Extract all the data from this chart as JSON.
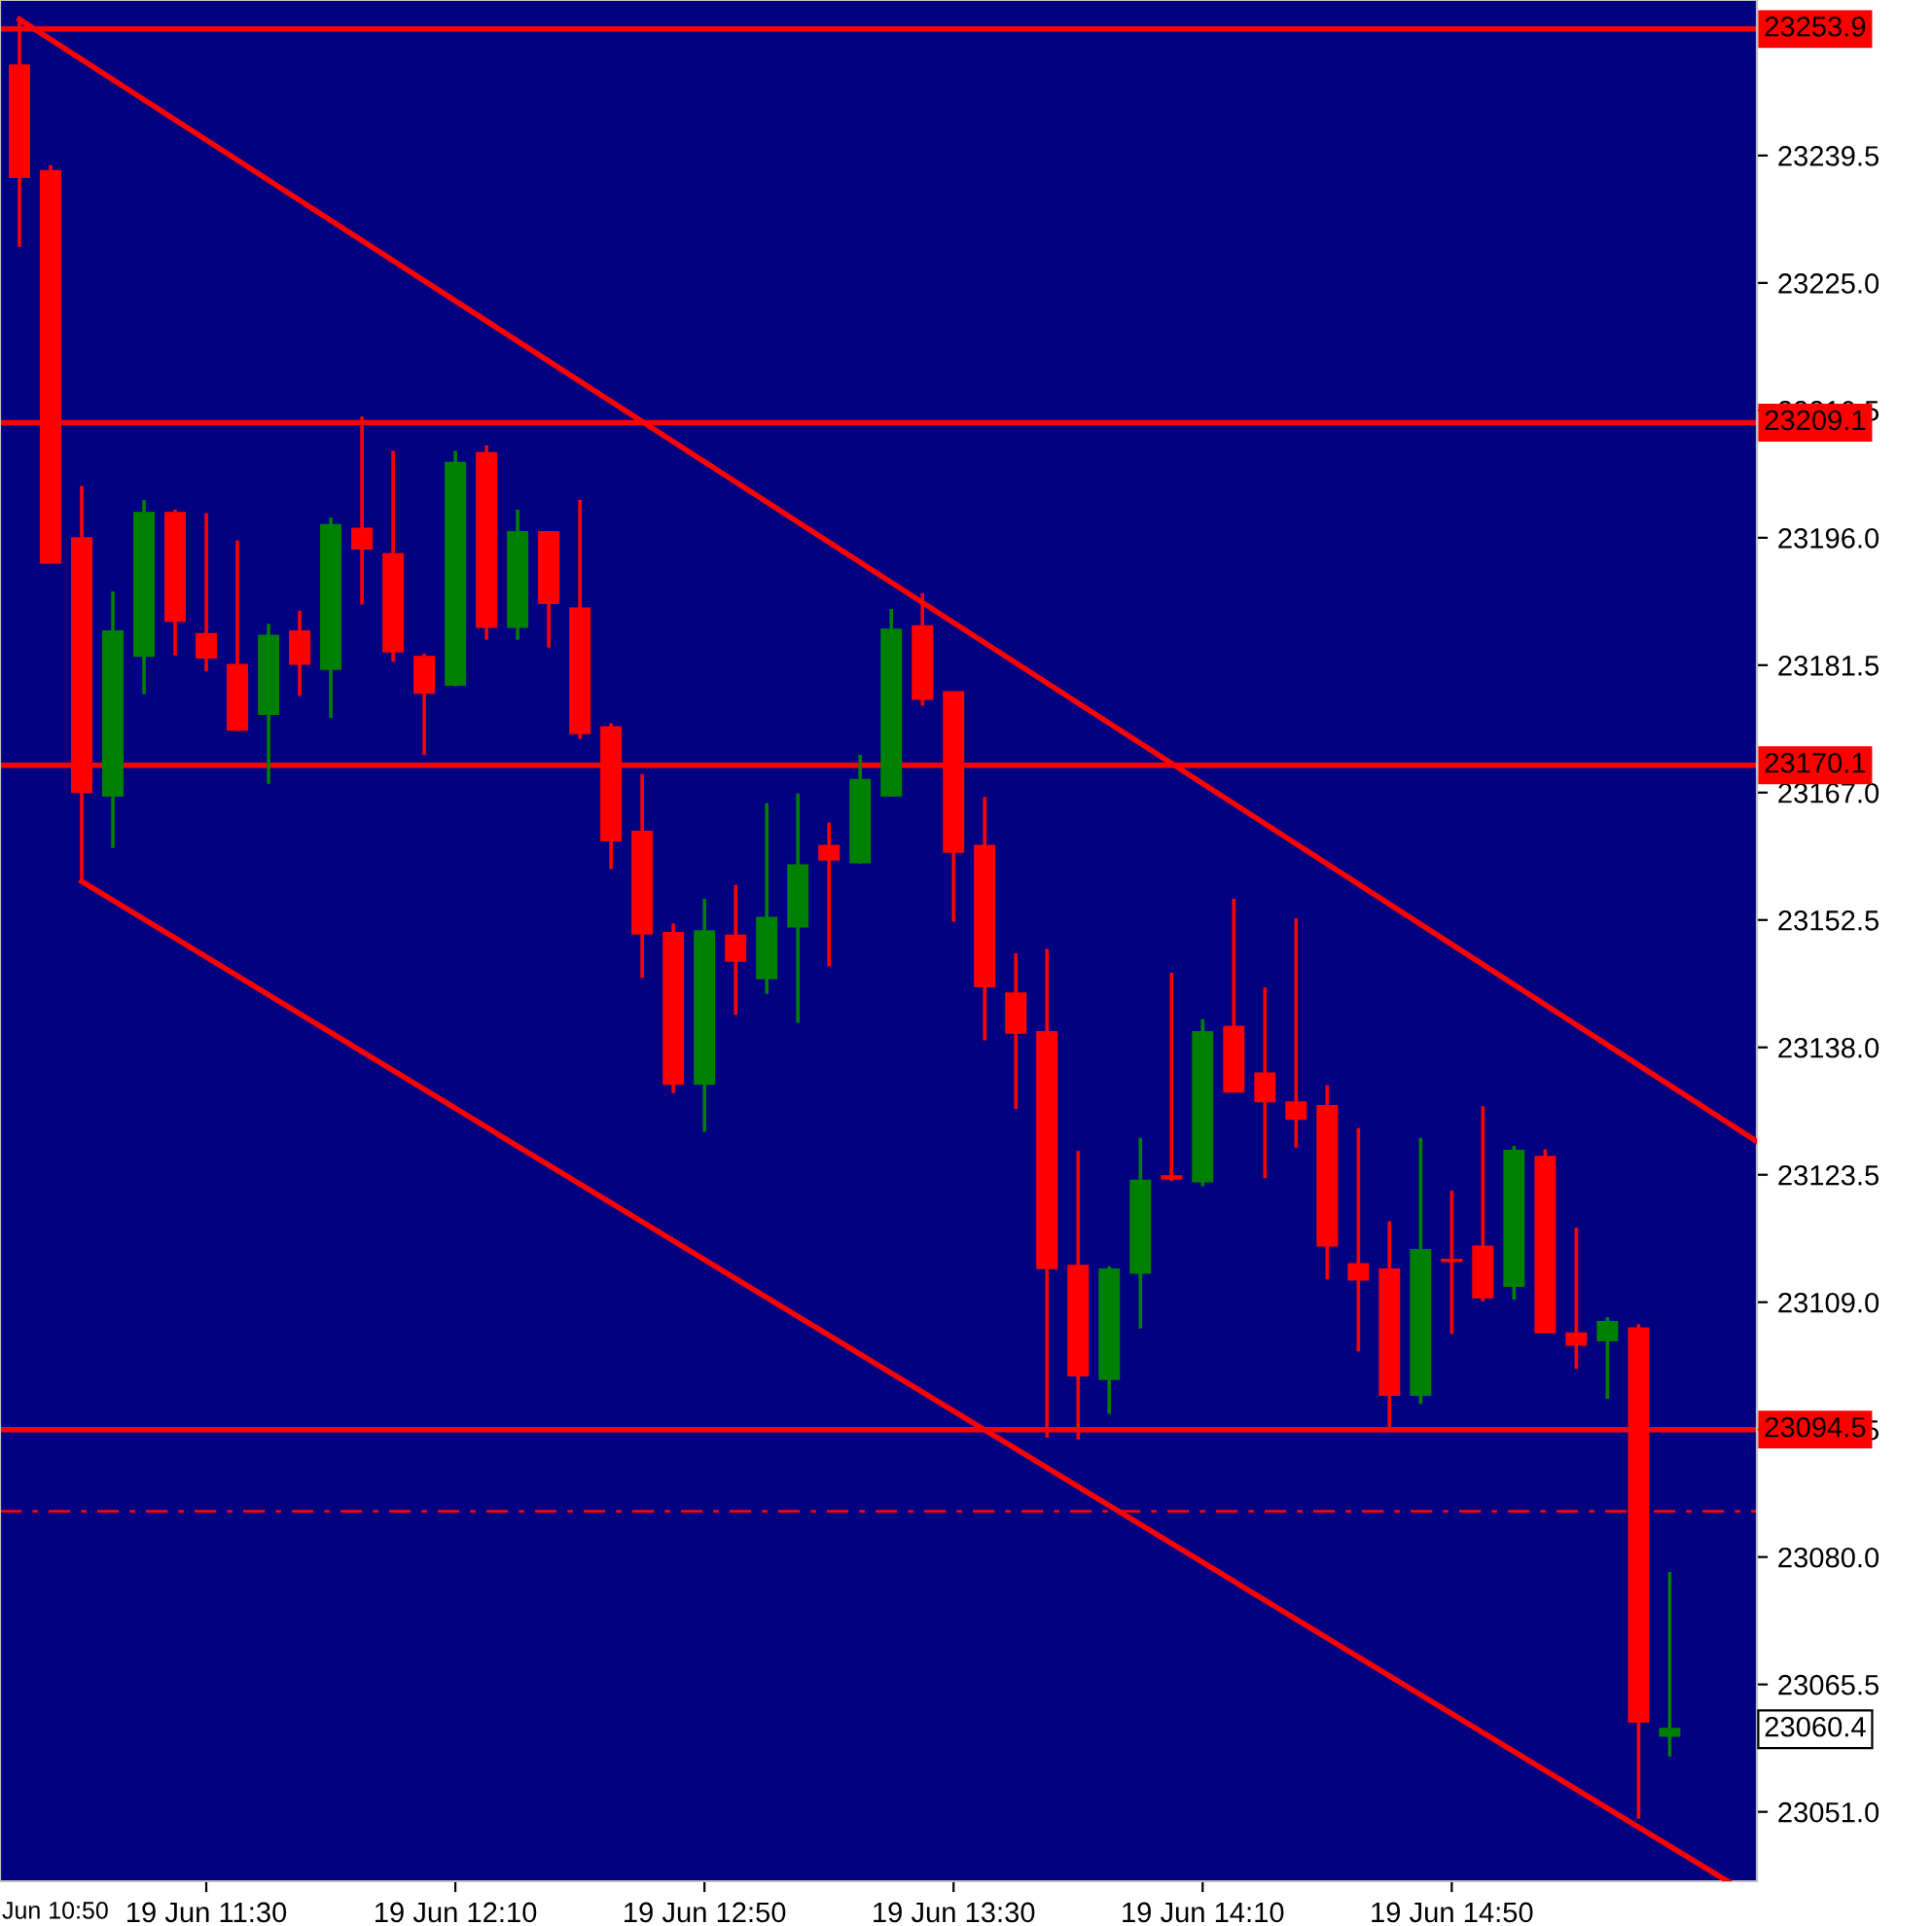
{
  "chart_data": {
    "type": "candlestick",
    "categories": [
      null,
      null,
      null,
      null,
      null,
      null,
      "19 Jun 11:30",
      null,
      null,
      null,
      null,
      null,
      null,
      null,
      "19 Jun 12:10",
      null,
      null,
      null,
      null,
      null,
      null,
      null,
      "19 Jun 12:50",
      null,
      null,
      null,
      null,
      null,
      null,
      null,
      "19 Jun 13:30",
      null,
      null,
      null,
      null,
      null,
      null,
      null,
      "19 Jun 14:10",
      null,
      null,
      null,
      null,
      null,
      null,
      null,
      "19 Jun 14:50",
      null,
      null,
      null,
      null,
      null,
      null,
      null
    ],
    "ohlc": [
      [
        23249.7,
        23255.0,
        23229.1,
        23237.1
      ],
      [
        23237.7,
        23238.4,
        23193.2,
        23193.2
      ],
      [
        23195.9,
        23201.9,
        23156.9,
        23167.1
      ],
      [
        23166.7,
        23189.9,
        23160.7,
        23185.3
      ],
      [
        23182.6,
        23200.3,
        23178.2,
        23198.8
      ],
      [
        23198.8,
        23199.2,
        23182.6,
        23186.6
      ],
      [
        23185.0,
        23198.8,
        23180.8,
        23182.4
      ],
      [
        23181.5,
        23195.7,
        23174.0,
        23174.2
      ],
      [
        23176.0,
        23186.2,
        23168.0,
        23184.8
      ],
      [
        23185.3,
        23187.7,
        23178.0,
        23181.7
      ],
      [
        23181.1,
        23198.3,
        23175.5,
        23197.4
      ],
      [
        23197.0,
        23209.8,
        23188.4,
        23194.8
      ],
      [
        23194.1,
        23205.9,
        23181.9,
        23183.1
      ],
      [
        23182.4,
        23182.8,
        23171.3,
        23178.4
      ],
      [
        23179.3,
        23205.9,
        23179.1,
        23204.5
      ],
      [
        23205.6,
        23206.5,
        23184.4,
        23185.9
      ],
      [
        23185.9,
        23199.2,
        23184.4,
        23196.6
      ],
      [
        23196.6,
        23196.6,
        23183.5,
        23188.6
      ],
      [
        23187.9,
        23200.3,
        23173.1,
        23173.8
      ],
      [
        23174.4,
        23174.9,
        23158.3,
        23161.6
      ],
      [
        23162.5,
        23169.1,
        23145.9,
        23151.0
      ],
      [
        23151.0,
        23152.1,
        23132.8,
        23133.9
      ],
      [
        23133.9,
        23154.9,
        23128.4,
        23151.2
      ],
      [
        23150.7,
        23156.5,
        23141.7,
        23147.9
      ],
      [
        23145.9,
        23165.8,
        23144.1,
        23152.7
      ],
      [
        23151.8,
        23166.9,
        23140.8,
        23158.7
      ],
      [
        23160.9,
        23163.6,
        23147.2,
        23159.4
      ],
      [
        23159.1,
        23171.3,
        23158.9,
        23168.4
      ],
      [
        23166.7,
        23187.9,
        23166.7,
        23185.5
      ],
      [
        23185.9,
        23189.7,
        23176.9,
        23177.7
      ],
      [
        23178.4,
        23178.4,
        23152.3,
        23160.3
      ],
      [
        23160.9,
        23166.5,
        23138.8,
        23145.0
      ],
      [
        23144.1,
        23148.7,
        23131.0,
        23139.7
      ],
      [
        23139.7,
        23149.2,
        23093.6,
        23112.9
      ],
      [
        23113.1,
        23126.2,
        23093.4,
        23100.7
      ],
      [
        23100.3,
        23113.1,
        23096.3,
        23112.7
      ],
      [
        23112.4,
        23127.7,
        23106.0,
        23122.8
      ],
      [
        23123.3,
        23146.5,
        23122.8,
        23123.1
      ],
      [
        23122.8,
        23141.2,
        23122.2,
        23139.7
      ],
      [
        23140.3,
        23154.9,
        23133.0,
        23133.0
      ],
      [
        23135.0,
        23144.8,
        23123.1,
        23131.9
      ],
      [
        23131.7,
        23152.7,
        23126.6,
        23129.9
      ],
      [
        23131.3,
        23133.7,
        23111.6,
        23115.5
      ],
      [
        23113.3,
        23128.8,
        23103.4,
        23111.6
      ],
      [
        23112.7,
        23118.2,
        23094.7,
        23098.5
      ],
      [
        23098.5,
        23127.7,
        23097.4,
        23114.9
      ],
      [
        23113.8,
        23121.7,
        23105.4,
        23113.7
      ],
      [
        23115.3,
        23131.3,
        23109.1,
        23109.6
      ],
      [
        23110.9,
        23126.8,
        23109.3,
        23126.2
      ],
      [
        23125.5,
        23126.4,
        23105.6,
        23105.6
      ],
      [
        23105.4,
        23117.5,
        23101.4,
        23104.2
      ],
      [
        23104.7,
        23107.3,
        23098.0,
        23106.7
      ],
      [
        23106.0,
        23106.5,
        23050.2,
        23061.3
      ],
      [
        23059.7,
        23078.3,
        23057.3,
        23060.4
      ]
    ],
    "colors": [
      "#ff0000",
      "#ff0000",
      "#ff0000",
      "#008000",
      "#008000",
      "#ff0000",
      "#ff0000",
      "#ff0000",
      "#008000",
      "#ff0000",
      "#008000",
      "#ff0000",
      "#ff0000",
      "#ff0000",
      "#008000",
      "#ff0000",
      "#008000",
      "#ff0000",
      "#ff0000",
      "#ff0000",
      "#ff0000",
      "#ff0000",
      "#008000",
      "#ff0000",
      "#008000",
      "#008000",
      "#ff0000",
      "#008000",
      "#008000",
      "#ff0000",
      "#ff0000",
      "#ff0000",
      "#ff0000",
      "#ff0000",
      "#ff0000",
      "#008000",
      "#008000",
      "#ff0000",
      "#008000",
      "#ff0000",
      "#ff0000",
      "#ff0000",
      "#ff0000",
      "#ff0000",
      "#ff0000",
      "#008000",
      "#ff0000",
      "#ff0000",
      "#008000",
      "#ff0000",
      "#ff0000",
      "#008000",
      "#ff0000",
      "#008000"
    ],
    "series": [
      {
        "type": "line",
        "color": "#ff0000",
        "values": [
          23255.0,
          null,
          null,
          null,
          null,
          null,
          null,
          null,
          null,
          null,
          null,
          null,
          null,
          null,
          null,
          null,
          null,
          null,
          null,
          null,
          null,
          null,
          null,
          null,
          null,
          null,
          null,
          null,
          null,
          null,
          null,
          null,
          null,
          null,
          null,
          null,
          null,
          null,
          null,
          null,
          null,
          null,
          null,
          null,
          null,
          null,
          null,
          null,
          null,
          null,
          null,
          null,
          null,
          23133.7
        ]
      },
      {
        "type": "line",
        "color": "#ff0000",
        "values": [
          null,
          null,
          23156.9,
          null,
          null,
          null,
          null,
          null,
          null,
          null,
          null,
          null,
          null,
          null,
          null,
          null,
          null,
          null,
          null,
          null,
          null,
          null,
          null,
          null,
          null,
          null,
          null,
          null,
          null,
          null,
          null,
          null,
          null,
          null,
          null,
          null,
          null,
          null,
          null,
          null,
          null,
          null,
          null,
          null,
          null,
          null,
          null,
          null,
          null,
          null,
          null,
          null,
          null,
          23047.1
        ]
      }
    ],
    "ref_lines": [
      {
        "axis": "y",
        "value": 23253.9,
        "label": "23253.9",
        "color": "#ff0000"
      },
      {
        "axis": "y",
        "value": 23209.1,
        "label": "23209.1",
        "color": "#ff0000"
      },
      {
        "axis": "y",
        "value": 23170.1,
        "label": "23170.1",
        "color": "#ff0000"
      },
      {
        "axis": "y",
        "value": 23094.5,
        "label": "23094.5",
        "color": "#ff0000"
      },
      {
        "axis": "y",
        "value": 23085.2,
        "color": "#ff0000",
        "line_style": "dashed"
      }
    ],
    "annotations": [
      "Jun 10:50",
      "23060.4"
    ],
    "ylim": [
      23043.1,
      23257.2
    ],
    "yticks": [
      {
        "value": 23051,
        "label": "23051.0"
      },
      23065.5,
      {
        "value": 23080,
        "label": "23080.0"
      },
      23094.5,
      {
        "value": 23109,
        "label": "23109.0"
      },
      23123.5,
      {
        "value": 23138,
        "label": "23138.0"
      },
      23152.5,
      {
        "value": 23167,
        "label": "23167.0"
      },
      23181.5,
      {
        "value": 23196,
        "label": "23196.0"
      },
      23210.5,
      {
        "value": 23225,
        "label": "23225.0"
      },
      23239.5
    ],
    "grid": false
  }
}
